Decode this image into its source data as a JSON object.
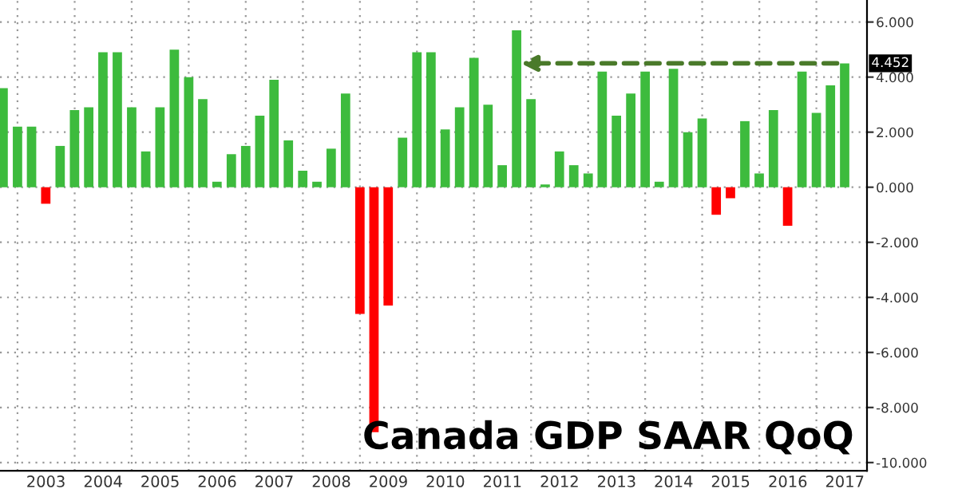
{
  "chart_data": {
    "type": "bar",
    "title": "Canada GDP SAAR QoQ",
    "x": [
      "2002-09-30",
      "2002-12-31",
      "2003-03-31",
      "2003-06-30",
      "2003-09-30",
      "2003-12-31",
      "2004-03-31",
      "2004-06-30",
      "2004-09-30",
      "2004-12-31",
      "2005-03-31",
      "2005-06-30",
      "2005-09-30",
      "2005-12-31",
      "2006-03-31",
      "2006-06-30",
      "2006-09-30",
      "2006-12-31",
      "2007-03-31",
      "2007-06-30",
      "2007-09-30",
      "2007-12-31",
      "2008-03-31",
      "2008-06-30",
      "2008-09-30",
      "2008-12-31",
      "2009-03-31",
      "2009-06-30",
      "2009-09-30",
      "2009-12-31",
      "2010-03-31",
      "2010-06-30",
      "2010-09-30",
      "2010-12-31",
      "2011-03-31",
      "2011-06-30",
      "2011-09-30",
      "2011-12-31",
      "2012-03-31",
      "2012-06-30",
      "2012-09-30",
      "2012-12-31",
      "2013-03-31",
      "2013-06-30",
      "2013-09-30",
      "2013-12-31",
      "2014-03-31",
      "2014-06-30",
      "2014-09-30",
      "2014-12-31",
      "2015-03-31",
      "2015-06-30",
      "2015-09-30",
      "2015-12-31",
      "2016-03-31",
      "2016-06-30",
      "2016-09-30",
      "2016-12-31",
      "2017-03-31",
      "2017-06-30"
    ],
    "values": [
      3.6,
      2.2,
      2.2,
      -0.6,
      1.5,
      2.8,
      2.9,
      4.9,
      4.9,
      2.9,
      1.3,
      2.9,
      5.0,
      4.0,
      3.2,
      0.2,
      1.2,
      1.5,
      2.6,
      3.9,
      1.7,
      0.6,
      0.2,
      1.4,
      3.4,
      -4.6,
      -8.9,
      -4.3,
      1.8,
      4.9,
      4.9,
      2.1,
      2.9,
      4.7,
      3.0,
      0.8,
      5.7,
      3.2,
      0.1,
      1.3,
      0.8,
      0.5,
      4.2,
      2.6,
      3.4,
      4.2,
      0.2,
      4.3,
      2.0,
      2.5,
      -1.0,
      -0.4,
      2.4,
      0.5,
      2.8,
      -1.4,
      4.2,
      2.7,
      3.7,
      4.5
    ],
    "colors": [
      "#3dbb3d",
      "#3dbb3d",
      "#3dbb3d",
      "#ff0000",
      "#3dbb3d",
      "#3dbb3d",
      "#3dbb3d",
      "#3dbb3d",
      "#3dbb3d",
      "#3dbb3d",
      "#3dbb3d",
      "#3dbb3d",
      "#3dbb3d",
      "#3dbb3d",
      "#3dbb3d",
      "#3dbb3d",
      "#3dbb3d",
      "#3dbb3d",
      "#3dbb3d",
      "#3dbb3d",
      "#3dbb3d",
      "#3dbb3d",
      "#3dbb3d",
      "#3dbb3d",
      "#3dbb3d",
      "#ff0000",
      "#ff0000",
      "#ff0000",
      "#3dbb3d",
      "#3dbb3d",
      "#3dbb3d",
      "#3dbb3d",
      "#3dbb3d",
      "#3dbb3d",
      "#3dbb3d",
      "#3dbb3d",
      "#3dbb3d",
      "#3dbb3d",
      "#3dbb3d",
      "#3dbb3d",
      "#3dbb3d",
      "#3dbb3d",
      "#3dbb3d",
      "#3dbb3d",
      "#3dbb3d",
      "#3dbb3d",
      "#3dbb3d",
      "#3dbb3d",
      "#3dbb3d",
      "#3dbb3d",
      "#ff0000",
      "#ff0000",
      "#3dbb3d",
      "#3dbb3d",
      "#3dbb3d",
      "#ff0000",
      "#3dbb3d",
      "#3dbb3d",
      "#3dbb3d",
      "#3dbb3d"
    ],
    "xlim": [
      "2002-09-10",
      "2017-11-20"
    ],
    "xticks": [
      {
        "value": "2003-07-01",
        "label": "2003"
      },
      {
        "value": "2004-07-01",
        "label": "2004"
      },
      {
        "value": "2005-07-01",
        "label": "2005"
      },
      {
        "value": "2006-07-01",
        "label": "2006"
      },
      {
        "value": "2007-07-01",
        "label": "2007"
      },
      {
        "value": "2008-07-01",
        "label": "2008"
      },
      {
        "value": "2009-07-01",
        "label": "2009"
      },
      {
        "value": "2010-07-01",
        "label": "2010"
      },
      {
        "value": "2011-07-01",
        "label": "2011"
      },
      {
        "value": "2012-07-01",
        "label": "2012"
      },
      {
        "value": "2013-07-01",
        "label": "2013"
      },
      {
        "value": "2014-07-01",
        "label": "2014"
      },
      {
        "value": "2015-07-01",
        "label": "2015"
      },
      {
        "value": "2016-07-01",
        "label": "2016"
      },
      {
        "value": "2017-07-01",
        "label": "2017"
      }
    ],
    "ylim": [
      -10.3,
      6.8
    ],
    "yticks": [
      {
        "value": -10,
        "label": "-10.000"
      },
      {
        "value": -8,
        "label": "-8.000"
      },
      {
        "value": -6,
        "label": "-6.000"
      },
      {
        "value": -4,
        "label": "-4.000"
      },
      {
        "value": -2,
        "label": "-2.000"
      },
      {
        "value": 0,
        "label": "0.000"
      },
      {
        "value": 2,
        "label": "2.000"
      },
      {
        "value": 4,
        "label": "4.000"
      },
      {
        "value": 6,
        "label": "6.000"
      }
    ],
    "grid": true,
    "annotations": [
      "4.452"
    ]
  }
}
